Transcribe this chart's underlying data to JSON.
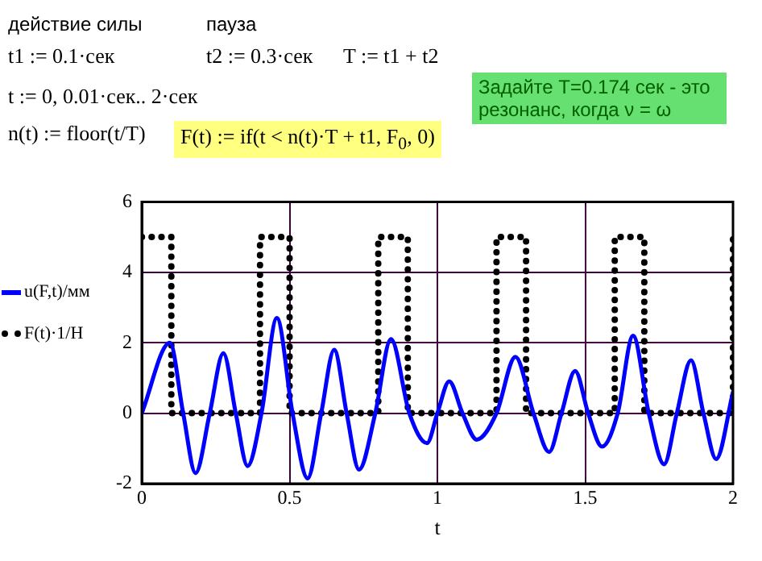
{
  "chart_data": {
    "type": "line",
    "xlabel": "t",
    "annotations": [
      "действие силы",
      "пауза",
      "t1 := 0.1·сек",
      "t2 := 0.3·сек",
      "T := t1 + t2",
      "t := 0, 0.01·сек.. 2·сек",
      "n(t) := floor(t/T)",
      "F(t) := if(t < n(t)·T + t1, F$_{0}$, 0)",
      "Задайте T=0.174 сек - это резонанс, когда ν = ω"
    ],
    "xlim": [
      0,
      2
    ],
    "xticks": [
      0,
      0.5,
      1,
      1.5,
      2
    ],
    "ylim": [
      -2,
      6
    ],
    "yticks": [
      -2,
      0,
      2,
      4,
      6
    ],
    "grid": true,
    "legend": "left",
    "marker": "none",
    "series": [
      {
        "name": "u(F,t)/мм",
        "color": "#0000ff",
        "line_style": "solid",
        "x": [
          0,
          0.095,
          0.14,
          0.182,
          0.23,
          0.276,
          0.318,
          0.358,
          0.405,
          0.457,
          0.51,
          0.561,
          0.607,
          0.651,
          0.693,
          0.735,
          0.79,
          0.843,
          0.905,
          0.965,
          1.0,
          1.04,
          1.085,
          1.133,
          1.2,
          1.264,
          1.325,
          1.378,
          1.42,
          1.466,
          1.51,
          1.557,
          1.61,
          1.662,
          1.715,
          1.767,
          1.81,
          1.858,
          1.9,
          1.943,
          2.0
        ],
        "values": [
          0,
          2.0,
          0,
          -1.7,
          0,
          1.7,
          0,
          -1.5,
          0,
          2.7,
          0,
          -1.85,
          0,
          1.8,
          0,
          -1.6,
          0,
          2.1,
          0,
          -0.85,
          0,
          0.9,
          0,
          -0.75,
          0,
          1.6,
          0,
          -1.1,
          0,
          1.2,
          0,
          -0.95,
          0,
          2.2,
          0,
          -1.45,
          0,
          1.5,
          0,
          -1.3,
          0.6
        ]
      },
      {
        "name": "F(t)·1/Н",
        "color": "#000000",
        "line_style": "dotted",
        "x": [
          0,
          0.1,
          0.1,
          0.4,
          0.4,
          0.5,
          0.5,
          0.8,
          0.8,
          0.9,
          0.9,
          1.2,
          1.2,
          1.3,
          1.3,
          1.6,
          1.6,
          1.7,
          1.7,
          2,
          2
        ],
        "values": [
          5,
          5,
          0,
          0,
          5,
          5,
          0,
          0,
          5,
          5,
          0,
          0,
          5,
          5,
          0,
          0,
          5,
          5,
          0,
          0,
          5
        ]
      }
    ]
  }
}
